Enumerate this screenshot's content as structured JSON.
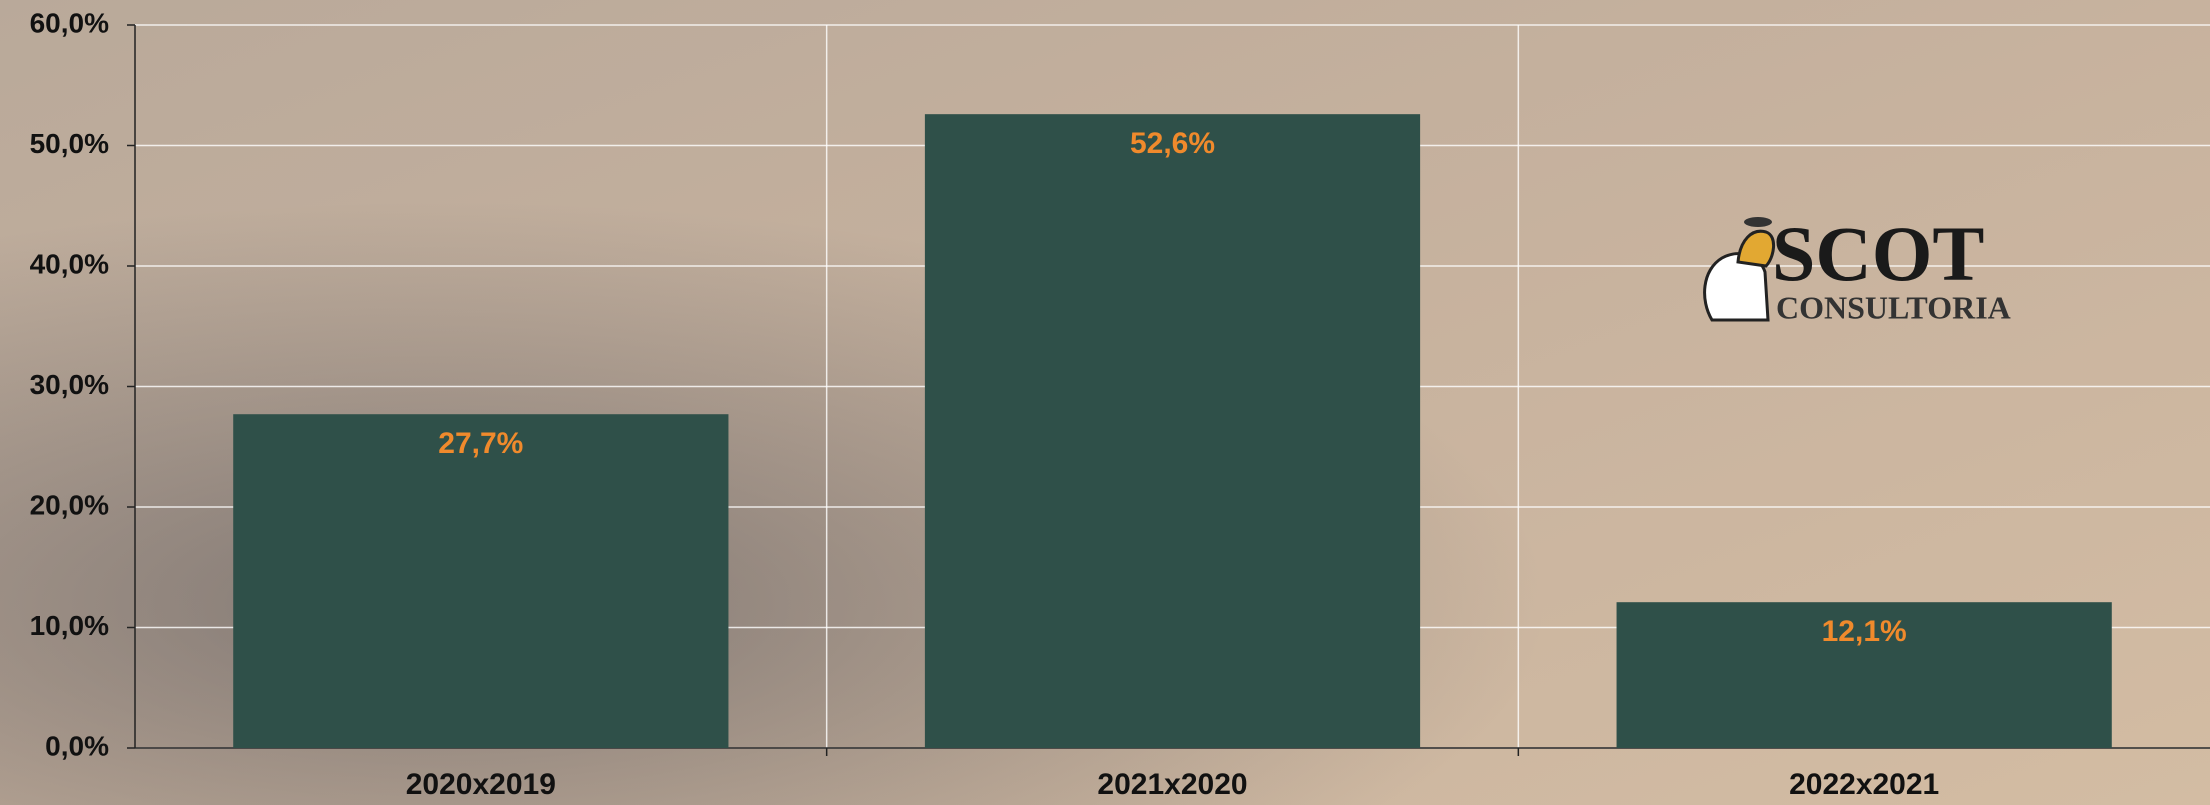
{
  "chart_data": {
    "type": "bar",
    "categories": [
      "2020x2019",
      "2021x2020",
      "2022x2021"
    ],
    "values": [
      27.7,
      52.6,
      12.1
    ],
    "value_labels": [
      "27,7%",
      "52,6%",
      "12,1%"
    ],
    "color": "#2f5049",
    "label_color": "#f08a2c",
    "ylim": [
      0,
      60
    ],
    "yticks": [
      {
        "value": 0,
        "label": "0,0%"
      },
      {
        "value": 10,
        "label": "10,0%"
      },
      {
        "value": 20,
        "label": "20,0%"
      },
      {
        "value": 30,
        "label": "30,0%"
      },
      {
        "value": 40,
        "label": "40,0%"
      },
      {
        "value": 50,
        "label": "50,0%"
      },
      {
        "value": 60,
        "label": "60,0%"
      }
    ],
    "grid": true
  },
  "logo": {
    "name": "SCOT",
    "subtitle": "CONSULTORIA"
  }
}
